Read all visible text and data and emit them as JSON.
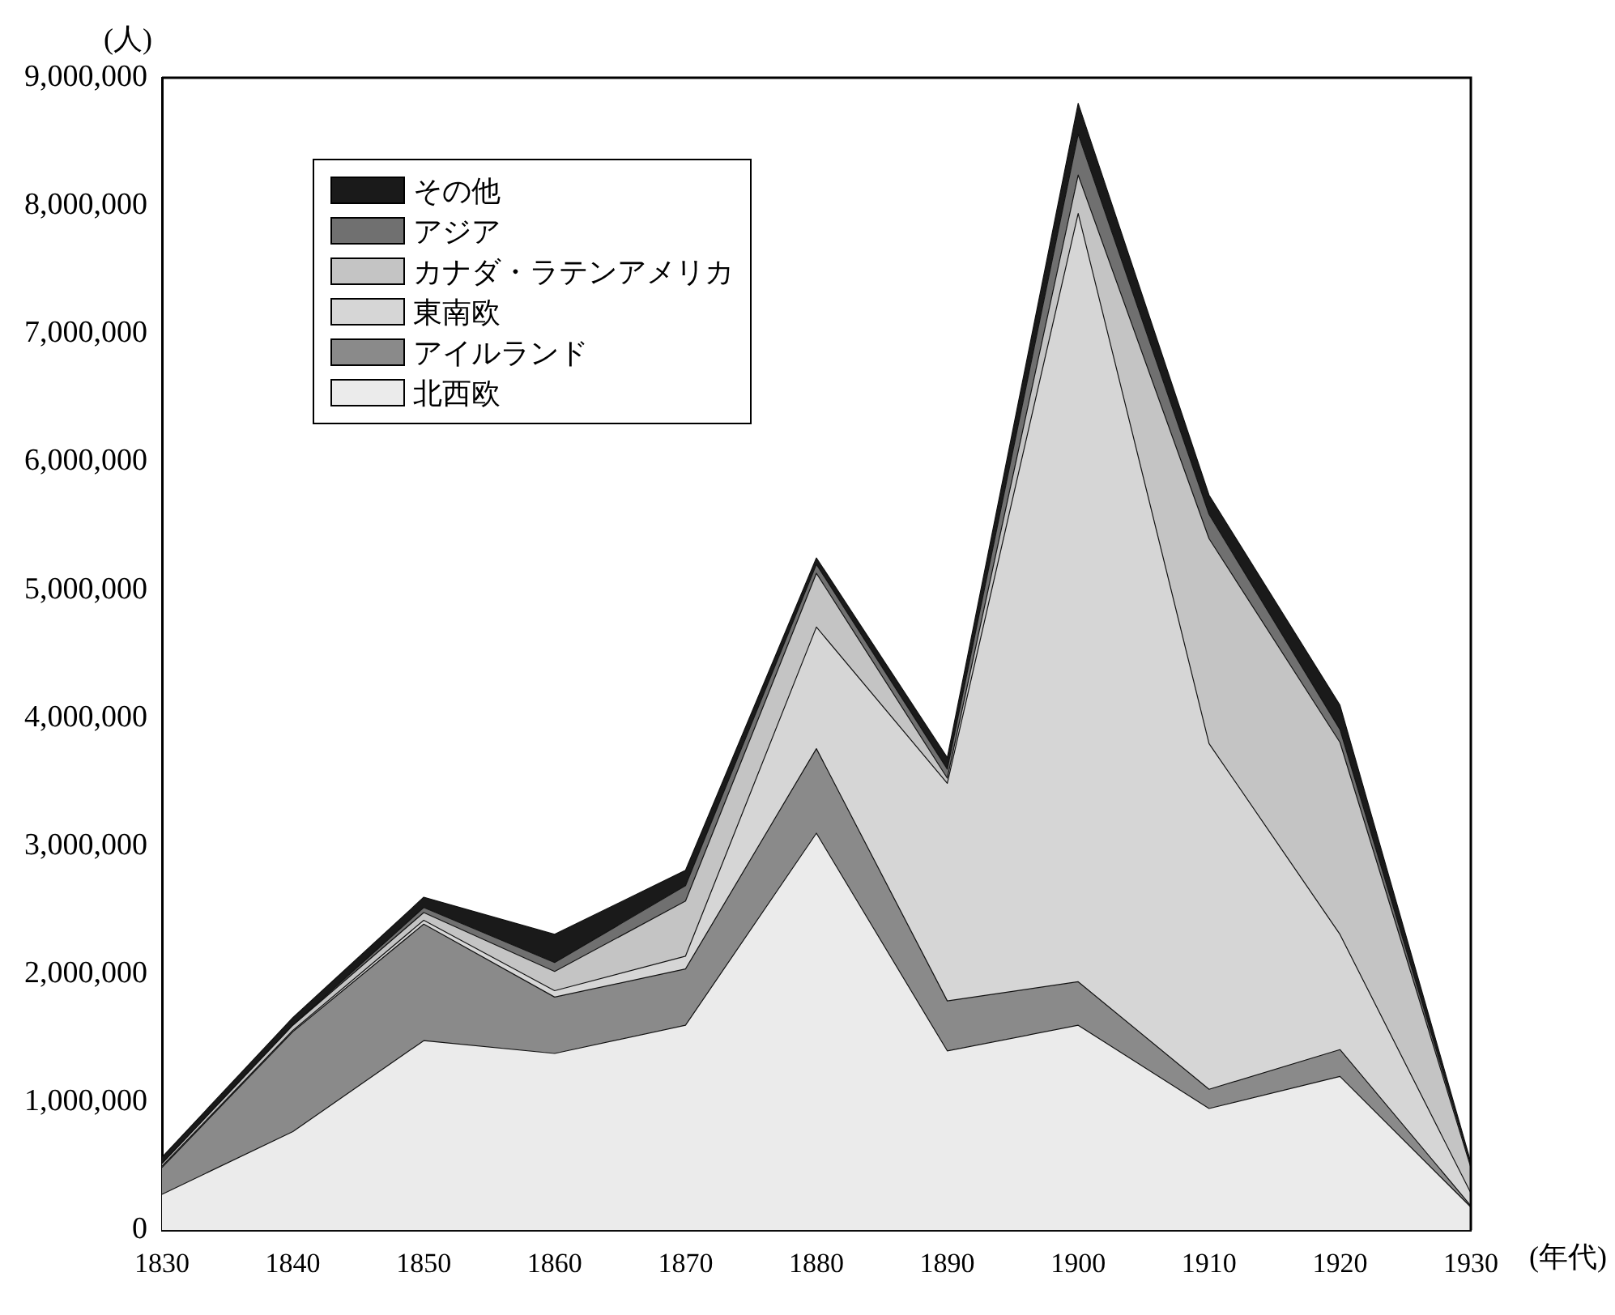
{
  "chart_data": {
    "type": "area",
    "stacked": true,
    "ylabel": "(人)",
    "xlabel": "(年代)",
    "categories": [
      "1830",
      "1840",
      "1850",
      "1860",
      "1870",
      "1880",
      "1890",
      "1900",
      "1910",
      "1920",
      "1930"
    ],
    "series": [
      {
        "name": "北西欧",
        "color": "#ebebeb",
        "values": [
          280000,
          770000,
          1480000,
          1380000,
          1600000,
          3100000,
          1400000,
          1600000,
          950000,
          1200000,
          180000
        ]
      },
      {
        "name": "アイルランド",
        "color": "#8a8a8a",
        "values": [
          210000,
          780000,
          910000,
          440000,
          440000,
          660000,
          390000,
          340000,
          150000,
          210000,
          10000
        ]
      },
      {
        "name": "東南欧",
        "color": "#d6d6d6",
        "values": [
          10000,
          10000,
          30000,
          50000,
          100000,
          950000,
          1700000,
          6000000,
          2700000,
          900000,
          100000
        ]
      },
      {
        "name": "カナダ・ラテンアメリカ",
        "color": "#c4c4c4",
        "values": [
          20000,
          40000,
          60000,
          150000,
          430000,
          420000,
          40000,
          300000,
          1600000,
          1500000,
          200000
        ]
      },
      {
        "name": "アジア",
        "color": "#707070",
        "values": [
          0,
          0,
          40000,
          70000,
          120000,
          70000,
          70000,
          320000,
          190000,
          100000,
          20000
        ]
      },
      {
        "name": "その他",
        "color": "#1a1a1a",
        "values": [
          50000,
          60000,
          80000,
          220000,
          120000,
          50000,
          90000,
          240000,
          150000,
          190000,
          20000
        ]
      }
    ],
    "ylim": [
      0,
      9000000
    ],
    "yticks": [
      0,
      {
        "value": 1000000,
        "label": "1,000,000"
      },
      {
        "value": 2000000,
        "label": "2,000,000"
      },
      {
        "value": 3000000,
        "label": "3,000,000"
      },
      {
        "value": 4000000,
        "label": "4,000,000"
      },
      {
        "value": 5000000,
        "label": "5,000,000"
      },
      {
        "value": 6000000,
        "label": "6,000,000"
      },
      {
        "value": 7000000,
        "label": "7,000,000"
      },
      {
        "value": 8000000,
        "label": "8,000,000"
      },
      {
        "value": 9000000,
        "label": "9,000,000"
      }
    ],
    "grid": false,
    "legend": "top left"
  }
}
